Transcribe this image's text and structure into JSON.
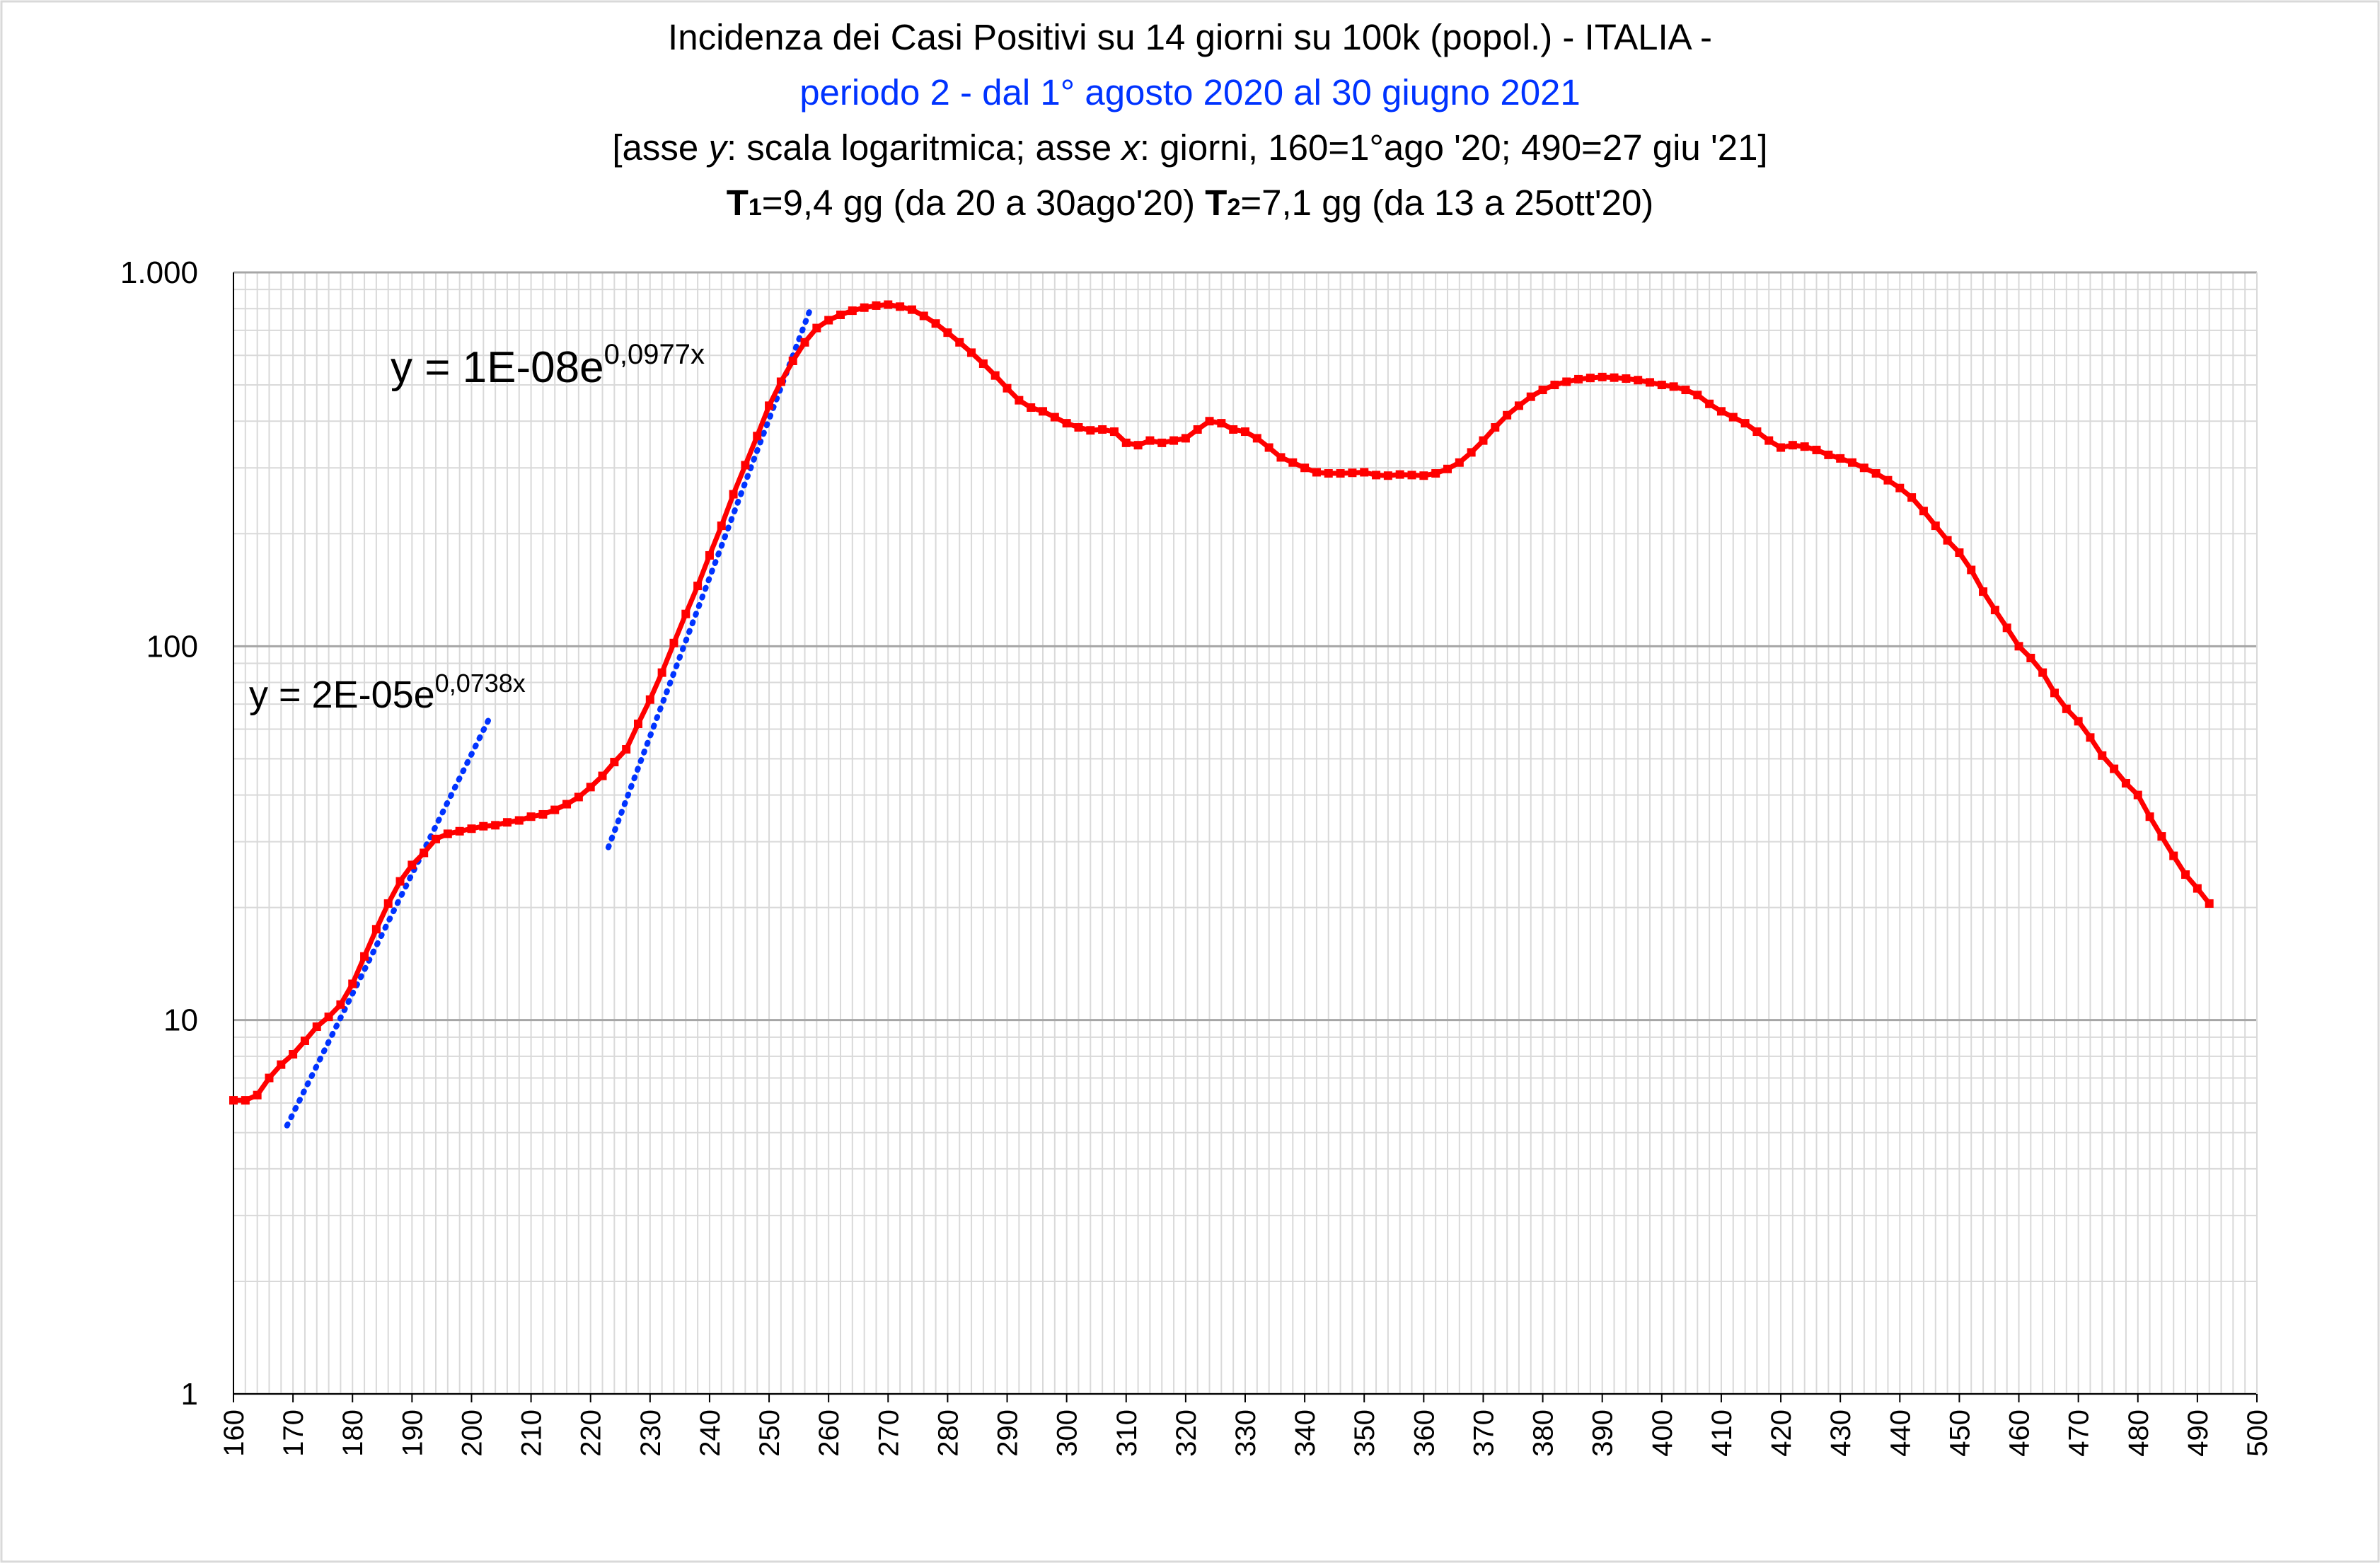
{
  "title": {
    "line1": "Incidenza dei Casi Positivi su 14 giorni su 100k (popol.) - ITALIA -",
    "line2": "periodo 2 - dal 1° agosto 2020 al 30 giugno 2021",
    "line3_a": "[asse ",
    "line3_y": "y",
    "line3_b": ": scala logaritmica; asse ",
    "line3_x": "x",
    "line3_c": ": giorni, 160=1°ago '20; 490=27 giu '21]",
    "line4_t1": "T",
    "line4_s1": "1",
    "line4_a": "=9,4 gg (da 20 a 30ago'20) ",
    "line4_t2": "T",
    "line4_s2": "2",
    "line4_b": "=7,1 gg (da 13 a 25ott'20)"
  },
  "colors": {
    "series": "#ff0000",
    "trend": "#0033ff",
    "subtitle": "#0033ff"
  },
  "chart_data": {
    "type": "line",
    "y_scale": "log",
    "xlim": [
      160,
      500
    ],
    "ylim": [
      1,
      1000
    ],
    "grid": true,
    "x_ticks": [
      160,
      170,
      180,
      190,
      200,
      210,
      220,
      230,
      240,
      250,
      260,
      270,
      280,
      290,
      300,
      310,
      320,
      330,
      340,
      350,
      360,
      370,
      380,
      390,
      400,
      410,
      420,
      430,
      440,
      450,
      460,
      470,
      480,
      490,
      500
    ],
    "y_ticks": [
      {
        "value": 1,
        "label": "1"
      },
      {
        "value": 10,
        "label": "10"
      },
      {
        "value": 100,
        "label": "100"
      },
      {
        "value": 1000,
        "label": "1.000"
      }
    ],
    "series": [
      {
        "name": "",
        "color": "#ff0000",
        "points": [
          [
            160,
            6.1
          ],
          [
            162,
            6.1
          ],
          [
            164,
            6.3
          ],
          [
            166,
            7.0
          ],
          [
            168,
            7.6
          ],
          [
            170,
            8.1
          ],
          [
            172,
            8.8
          ],
          [
            174,
            9.6
          ],
          [
            176,
            10.2
          ],
          [
            178,
            11.0
          ],
          [
            180,
            12.5
          ],
          [
            182,
            14.8
          ],
          [
            184,
            17.5
          ],
          [
            186,
            20.5
          ],
          [
            188,
            23.5
          ],
          [
            190,
            26.0
          ],
          [
            192,
            28.0
          ],
          [
            194,
            30.5
          ],
          [
            196,
            31.5
          ],
          [
            198,
            32.0
          ],
          [
            200,
            32.5
          ],
          [
            202,
            33.0
          ],
          [
            204,
            33.2
          ],
          [
            206,
            33.8
          ],
          [
            208,
            34.2
          ],
          [
            210,
            35.0
          ],
          [
            212,
            35.5
          ],
          [
            214,
            36.5
          ],
          [
            216,
            37.8
          ],
          [
            218,
            39.5
          ],
          [
            220,
            42.0
          ],
          [
            222,
            45.0
          ],
          [
            224,
            49.0
          ],
          [
            226,
            53.0
          ],
          [
            228,
            62.0
          ],
          [
            230,
            72.0
          ],
          [
            232,
            85.0
          ],
          [
            234,
            102.0
          ],
          [
            236,
            122.0
          ],
          [
            238,
            145.0
          ],
          [
            240,
            175.0
          ],
          [
            242,
            210.0
          ],
          [
            244,
            255.0
          ],
          [
            246,
            305.0
          ],
          [
            248,
            365.0
          ],
          [
            250,
            440.0
          ],
          [
            252,
            510.0
          ],
          [
            254,
            580.0
          ],
          [
            256,
            650.0
          ],
          [
            258,
            710.0
          ],
          [
            260,
            745.0
          ],
          [
            262,
            770.0
          ],
          [
            264,
            790.0
          ],
          [
            266,
            805.0
          ],
          [
            268,
            815.0
          ],
          [
            270,
            820.0
          ],
          [
            272,
            810.0
          ],
          [
            274,
            795.0
          ],
          [
            276,
            765.0
          ],
          [
            278,
            730.0
          ],
          [
            280,
            690.0
          ],
          [
            282,
            650.0
          ],
          [
            284,
            610.0
          ],
          [
            286,
            570.0
          ],
          [
            288,
            530.0
          ],
          [
            290,
            490.0
          ],
          [
            292,
            455.0
          ],
          [
            294,
            435.0
          ],
          [
            296,
            425.0
          ],
          [
            298,
            410.0
          ],
          [
            300,
            395.0
          ],
          [
            302,
            385.0
          ],
          [
            304,
            378.0
          ],
          [
            306,
            380.0
          ],
          [
            308,
            375.0
          ],
          [
            310,
            350.0
          ],
          [
            312,
            345.0
          ],
          [
            314,
            355.0
          ],
          [
            316,
            350.0
          ],
          [
            318,
            355.0
          ],
          [
            320,
            360.0
          ],
          [
            322,
            380.0
          ],
          [
            324,
            400.0
          ],
          [
            326,
            395.0
          ],
          [
            328,
            380.0
          ],
          [
            330,
            375.0
          ],
          [
            332,
            360.0
          ],
          [
            334,
            340.0
          ],
          [
            336,
            320.0
          ],
          [
            338,
            310.0
          ],
          [
            340,
            300.0
          ],
          [
            342,
            292.0
          ],
          [
            344,
            290.0
          ],
          [
            346,
            290.0
          ],
          [
            348,
            291.0
          ],
          [
            350,
            292.0
          ],
          [
            352,
            287.0
          ],
          [
            354,
            286.0
          ],
          [
            356,
            288.0
          ],
          [
            358,
            287.0
          ],
          [
            360,
            286.0
          ],
          [
            362,
            290.0
          ],
          [
            364,
            298.0
          ],
          [
            366,
            310.0
          ],
          [
            368,
            330.0
          ],
          [
            370,
            355.0
          ],
          [
            372,
            385.0
          ],
          [
            374,
            415.0
          ],
          [
            376,
            440.0
          ],
          [
            378,
            465.0
          ],
          [
            380,
            485.0
          ],
          [
            382,
            500.0
          ],
          [
            384,
            510.0
          ],
          [
            386,
            518.0
          ],
          [
            388,
            522.0
          ],
          [
            390,
            525.0
          ],
          [
            392,
            523.0
          ],
          [
            394,
            520.0
          ],
          [
            396,
            515.0
          ],
          [
            398,
            508.0
          ],
          [
            400,
            500.0
          ],
          [
            402,
            495.0
          ],
          [
            404,
            485.0
          ],
          [
            406,
            470.0
          ],
          [
            408,
            445.0
          ],
          [
            410,
            425.0
          ],
          [
            412,
            410.0
          ],
          [
            414,
            395.0
          ],
          [
            416,
            375.0
          ],
          [
            418,
            355.0
          ],
          [
            420,
            340.0
          ],
          [
            422,
            345.0
          ],
          [
            424,
            342.0
          ],
          [
            426,
            335.0
          ],
          [
            428,
            325.0
          ],
          [
            430,
            318.0
          ],
          [
            432,
            310.0
          ],
          [
            434,
            300.0
          ],
          [
            436,
            290.0
          ],
          [
            438,
            278.0
          ],
          [
            440,
            265.0
          ],
          [
            442,
            250.0
          ],
          [
            444,
            230.0
          ],
          [
            446,
            210.0
          ],
          [
            448,
            192.0
          ],
          [
            450,
            178.0
          ],
          [
            452,
            160.0
          ],
          [
            454,
            140.0
          ],
          [
            456,
            125.0
          ],
          [
            458,
            112.0
          ],
          [
            460,
            100.0
          ],
          [
            462,
            93.0
          ],
          [
            464,
            85.0
          ],
          [
            466,
            75.0
          ],
          [
            468,
            68.0
          ],
          [
            470,
            63.0
          ],
          [
            472,
            57.0
          ],
          [
            474,
            51.0
          ],
          [
            476,
            47.0
          ],
          [
            478,
            43.0
          ],
          [
            480,
            40.0
          ],
          [
            482,
            35.0
          ],
          [
            484,
            31.0
          ],
          [
            486,
            27.5
          ],
          [
            488,
            24.5
          ],
          [
            490,
            22.5
          ],
          [
            492,
            20.5
          ]
        ]
      }
    ],
    "trendlines": [
      {
        "label_base": "y = 2E-05e",
        "label_exp": "0,0738x",
        "a": 2e-05,
        "b": 0.0738,
        "x_range": [
          169,
          203
        ],
        "color": "#0033ff"
      },
      {
        "label_base": "y = 1E-08e",
        "label_exp": "0,0977x",
        "a": 1e-08,
        "b": 0.0977,
        "x_range": [
          223,
          257
        ],
        "color": "#0033ff"
      }
    ]
  }
}
